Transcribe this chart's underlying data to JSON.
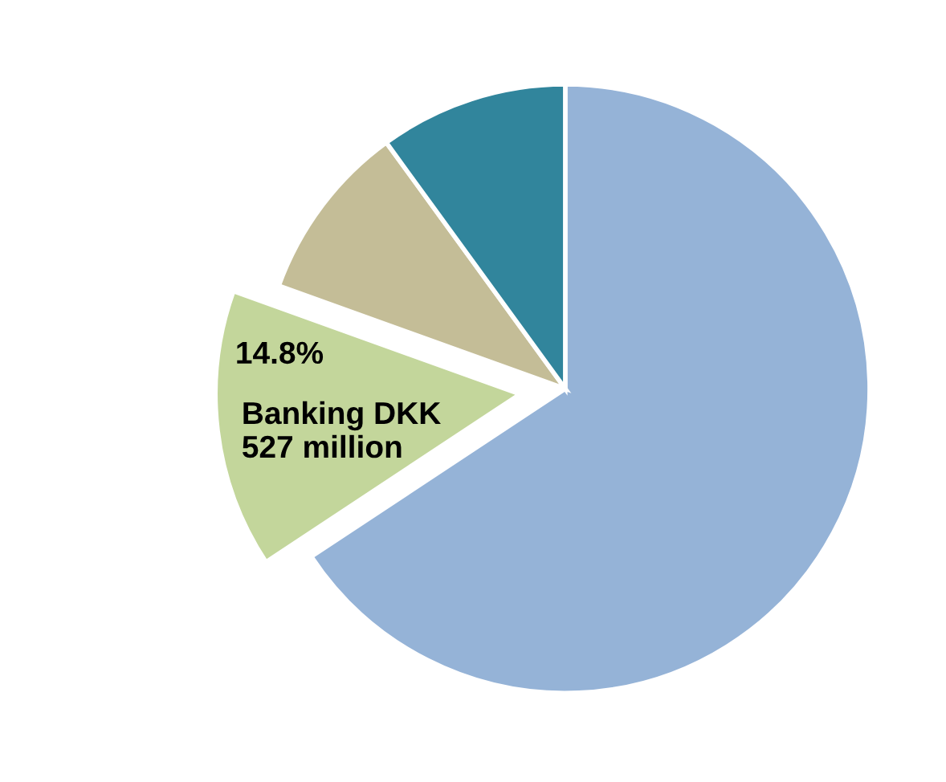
{
  "chart_data": {
    "type": "pie",
    "categories": [
      null,
      "Banking DKK\n527 million",
      null,
      null
    ],
    "values": [
      65.7,
      14.8,
      9.5,
      10.0
    ],
    "value_labels": [
      null,
      "14.8%",
      null,
      null
    ],
    "colors": [
      "#95b3d7",
      "#c3d69b",
      "#c4bd97",
      "#31859c"
    ],
    "legend": false
  }
}
